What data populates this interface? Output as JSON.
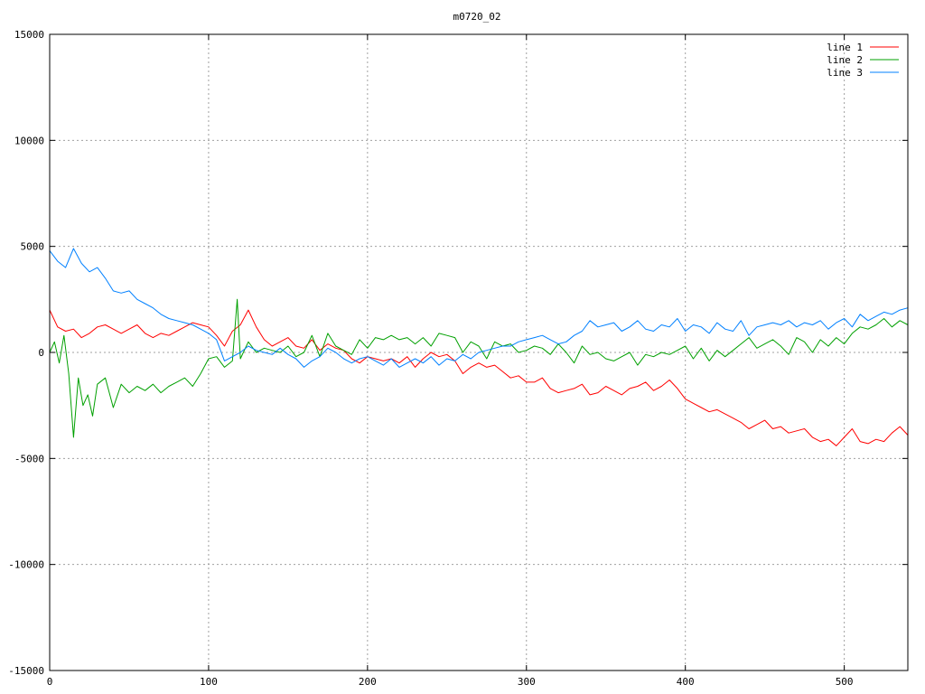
{
  "chart_data": {
    "type": "line",
    "title": "m0720_02",
    "xlim": [
      0,
      540
    ],
    "ylim": [
      -15000,
      15000
    ],
    "grid": true,
    "legend_position": "top-right",
    "x_ticks": [
      {
        "value": 0,
        "label": "0"
      },
      {
        "value": 100,
        "label": "100"
      },
      {
        "value": 200,
        "label": "200"
      },
      {
        "value": 300,
        "label": "300"
      },
      {
        "value": 400,
        "label": "400"
      },
      {
        "value": 500,
        "label": "500"
      }
    ],
    "y_ticks": [
      {
        "value": 15000,
        "label": "15000"
      },
      {
        "value": 10000,
        "label": "10000"
      },
      {
        "value": 5000,
        "label": "5000"
      },
      {
        "value": 0,
        "label": "0"
      },
      {
        "value": -5000,
        "label": "-5000"
      },
      {
        "value": -10000,
        "label": "-10000"
      },
      {
        "value": -15000,
        "label": "-15000"
      }
    ],
    "series": [
      {
        "name": "line 1",
        "color": "#ff0000",
        "x": [
          0,
          5,
          10,
          15,
          20,
          25,
          30,
          35,
          40,
          45,
          50,
          55,
          60,
          65,
          70,
          75,
          80,
          85,
          90,
          95,
          100,
          105,
          110,
          115,
          120,
          125,
          130,
          135,
          140,
          145,
          150,
          155,
          160,
          165,
          170,
          175,
          180,
          185,
          190,
          195,
          200,
          205,
          210,
          215,
          220,
          225,
          230,
          235,
          240,
          245,
          250,
          255,
          260,
          265,
          270,
          275,
          280,
          285,
          290,
          295,
          300,
          305,
          310,
          315,
          320,
          325,
          330,
          335,
          340,
          345,
          350,
          355,
          360,
          365,
          370,
          375,
          380,
          385,
          390,
          395,
          400,
          405,
          410,
          415,
          420,
          425,
          430,
          435,
          440,
          445,
          450,
          455,
          460,
          465,
          470,
          475,
          480,
          485,
          490,
          495,
          500,
          505,
          510,
          515,
          520,
          525,
          530,
          535,
          540
        ],
        "y": [
          2000,
          1200,
          1000,
          1100,
          700,
          900,
          1200,
          1300,
          1100,
          900,
          1100,
          1300,
          900,
          700,
          900,
          800,
          1000,
          1200,
          1400,
          1300,
          1200,
          800,
          300,
          1000,
          1300,
          2000,
          1200,
          600,
          300,
          500,
          700,
          300,
          200,
          600,
          100,
          400,
          200,
          100,
          -300,
          -500,
          -200,
          -300,
          -400,
          -300,
          -500,
          -200,
          -700,
          -300,
          0,
          -200,
          -100,
          -400,
          -1000,
          -700,
          -500,
          -700,
          -600,
          -900,
          -1200,
          -1100,
          -1400,
          -1400,
          -1200,
          -1700,
          -1900,
          -1800,
          -1700,
          -1500,
          -2000,
          -1900,
          -1600,
          -1800,
          -2000,
          -1700,
          -1600,
          -1400,
          -1800,
          -1600,
          -1300,
          -1700,
          -2200,
          -2400,
          -2600,
          -2800,
          -2700,
          -2900,
          -3100,
          -3300,
          -3600,
          -3400,
          -3200,
          -3600,
          -3500,
          -3800,
          -3700,
          -3600,
          -4000,
          -4200,
          -4100,
          -4400,
          -4000,
          -3600,
          -4200,
          -4300,
          -4100,
          -4200,
          -3800,
          -3500,
          -3900
        ]
      },
      {
        "name": "line 2",
        "color": "#00a000",
        "x": [
          0,
          3,
          6,
          9,
          12,
          15,
          18,
          21,
          24,
          27,
          30,
          35,
          40,
          45,
          50,
          55,
          60,
          65,
          70,
          75,
          80,
          85,
          90,
          95,
          100,
          105,
          110,
          115,
          118,
          120,
          125,
          130,
          135,
          140,
          145,
          150,
          155,
          160,
          165,
          170,
          175,
          180,
          185,
          190,
          195,
          200,
          205,
          210,
          215,
          220,
          225,
          230,
          235,
          240,
          245,
          250,
          255,
          260,
          265,
          270,
          275,
          280,
          285,
          290,
          295,
          300,
          305,
          310,
          315,
          320,
          325,
          330,
          335,
          340,
          345,
          350,
          355,
          360,
          365,
          370,
          375,
          380,
          385,
          390,
          395,
          400,
          405,
          410,
          415,
          420,
          425,
          430,
          435,
          440,
          445,
          450,
          455,
          460,
          465,
          470,
          475,
          480,
          485,
          490,
          495,
          500,
          505,
          510,
          515,
          520,
          525,
          530,
          535,
          540
        ],
        "y": [
          0,
          500,
          -500,
          800,
          -1000,
          -4000,
          -1200,
          -2500,
          -2000,
          -3000,
          -1500,
          -1200,
          -2600,
          -1500,
          -1900,
          -1600,
          -1800,
          -1500,
          -1900,
          -1600,
          -1400,
          -1200,
          -1600,
          -1000,
          -300,
          -200,
          -700,
          -400,
          2500,
          -300,
          500,
          0,
          200,
          100,
          0,
          300,
          -200,
          0,
          800,
          -200,
          900,
          300,
          100,
          -100,
          600,
          200,
          700,
          600,
          800,
          600,
          700,
          400,
          700,
          300,
          900,
          800,
          700,
          0,
          500,
          300,
          -300,
          500,
          300,
          400,
          0,
          100,
          300,
          200,
          -100,
          400,
          0,
          -500,
          300,
          -100,
          0,
          -300,
          -400,
          -200,
          0,
          -600,
          -100,
          -200,
          0,
          -100,
          100,
          300,
          -300,
          200,
          -400,
          100,
          -200,
          100,
          400,
          700,
          200,
          400,
          600,
          300,
          -100,
          700,
          500,
          0,
          600,
          300,
          700,
          400,
          900,
          1200,
          1100,
          1300,
          1600,
          1200,
          1500,
          1300
        ]
      },
      {
        "name": "line 3",
        "color": "#0080ff",
        "x": [
          0,
          5,
          10,
          15,
          20,
          25,
          30,
          35,
          40,
          45,
          50,
          55,
          60,
          65,
          70,
          75,
          80,
          85,
          90,
          95,
          100,
          105,
          110,
          115,
          120,
          125,
          130,
          135,
          140,
          145,
          150,
          155,
          160,
          165,
          170,
          175,
          180,
          185,
          190,
          195,
          200,
          205,
          210,
          215,
          220,
          225,
          230,
          235,
          240,
          245,
          250,
          255,
          260,
          265,
          270,
          275,
          280,
          285,
          290,
          295,
          300,
          305,
          310,
          315,
          320,
          325,
          330,
          335,
          340,
          345,
          350,
          355,
          360,
          365,
          370,
          375,
          380,
          385,
          390,
          395,
          400,
          405,
          410,
          415,
          420,
          425,
          430,
          435,
          440,
          445,
          450,
          455,
          460,
          465,
          470,
          475,
          480,
          485,
          490,
          495,
          500,
          505,
          510,
          515,
          520,
          525,
          530,
          535,
          540
        ],
        "y": [
          4800,
          4300,
          4000,
          4900,
          4200,
          3800,
          4000,
          3500,
          2900,
          2800,
          2900,
          2500,
          2300,
          2100,
          1800,
          1600,
          1500,
          1400,
          1300,
          1100,
          900,
          600,
          -400,
          -200,
          0,
          300,
          100,
          0,
          -100,
          200,
          -100,
          -300,
          -700,
          -400,
          -200,
          200,
          0,
          -300,
          -500,
          -300,
          -200,
          -400,
          -600,
          -300,
          -700,
          -500,
          -300,
          -500,
          -200,
          -600,
          -300,
          -400,
          -100,
          -300,
          0,
          100,
          200,
          300,
          300,
          500,
          600,
          700,
          800,
          600,
          400,
          500,
          800,
          1000,
          1500,
          1200,
          1300,
          1400,
          1000,
          1200,
          1500,
          1100,
          1000,
          1300,
          1200,
          1600,
          1000,
          1300,
          1200,
          900,
          1400,
          1100,
          1000,
          1500,
          800,
          1200,
          1300,
          1400,
          1300,
          1500,
          1200,
          1400,
          1300,
          1500,
          1100,
          1400,
          1600,
          1200,
          1800,
          1500,
          1700,
          1900,
          1800,
          2000,
          2100
        ]
      }
    ]
  }
}
